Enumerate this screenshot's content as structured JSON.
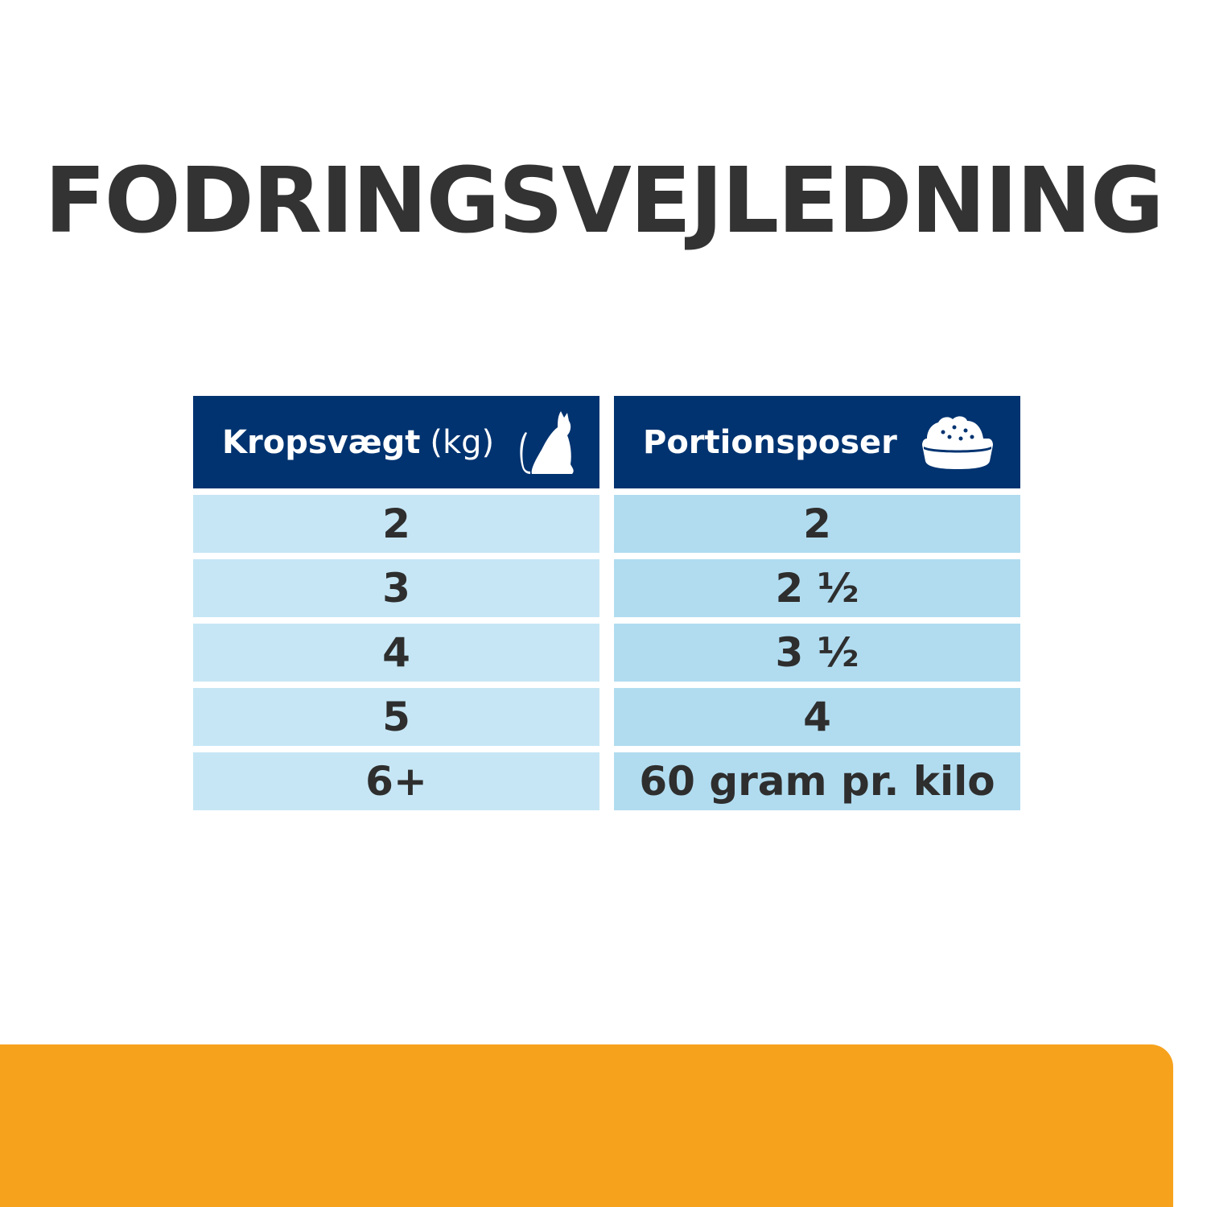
{
  "title": "FODRINGSVEJLEDNING",
  "table": {
    "headers": [
      {
        "label": "Kropsvægt",
        "unit": "(kg)",
        "icon": "cat-icon"
      },
      {
        "label": "Portionsposer",
        "icon": "food-bowl-icon"
      }
    ],
    "rows": [
      {
        "weight": "2",
        "portions": "2"
      },
      {
        "weight": "3",
        "portions": "2 ½"
      },
      {
        "weight": "4",
        "portions": "3 ½"
      },
      {
        "weight": "5",
        "portions": "4"
      },
      {
        "weight": "6+",
        "portions": "60 gram pr. kilo"
      }
    ]
  },
  "colors": {
    "header": "#003370",
    "row_left": "#c6e6f5",
    "row_right": "#b1dcf0",
    "accent": "#f7a21d",
    "text": "#333333"
  }
}
